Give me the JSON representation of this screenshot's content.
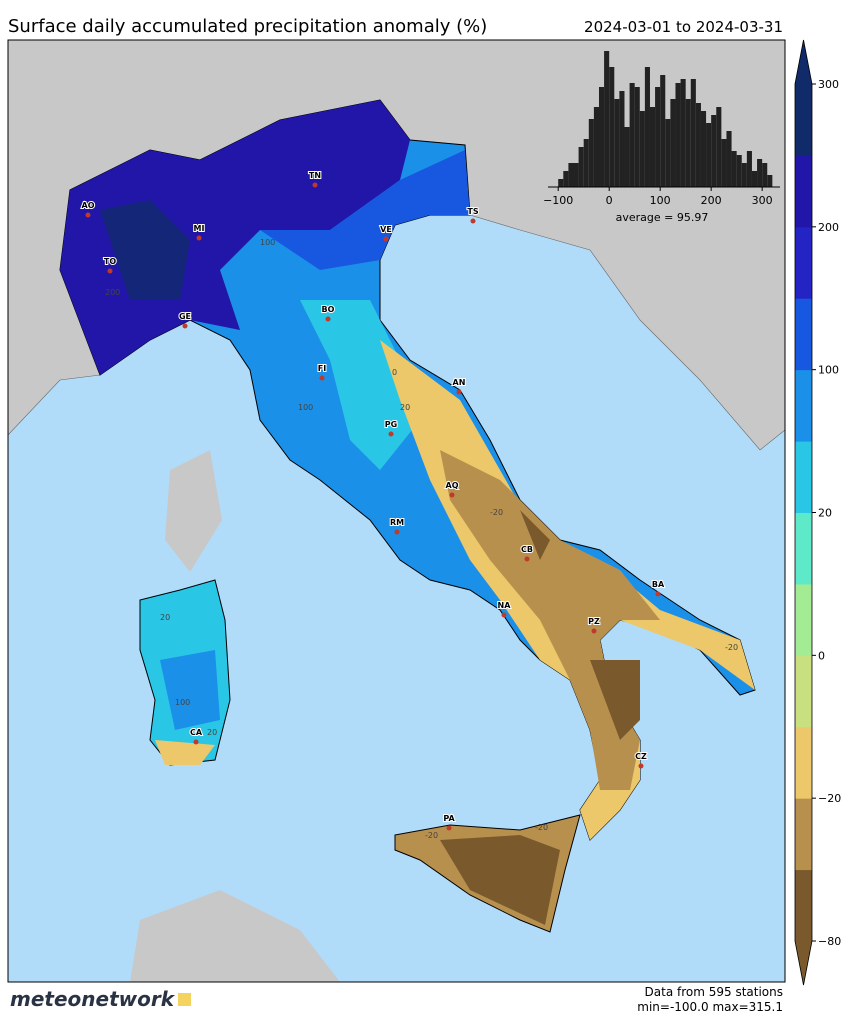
{
  "title": "Surface daily accumulated precipitation anomaly (%)",
  "date_range": "2024-03-01 to 2024-03-31",
  "cities": [
    "AO",
    "TO",
    "MI",
    "GE",
    "TN",
    "VE",
    "TS",
    "BO",
    "FI",
    "AN",
    "PG",
    "AQ",
    "RM",
    "CB",
    "NA",
    "BA",
    "PZ",
    "CZ",
    "PA",
    "CA"
  ],
  "contour_labels": [
    "100",
    "100",
    "200",
    "20",
    "20",
    "-20",
    "-20",
    "0",
    "-20",
    "-20",
    "20",
    "100"
  ],
  "histogram": {
    "type": "histogram",
    "bins": [
      -100,
      -90,
      -80,
      -70,
      -60,
      -50,
      -40,
      -30,
      -20,
      -10,
      0,
      10,
      20,
      30,
      40,
      50,
      60,
      70,
      80,
      90,
      100,
      110,
      120,
      130,
      140,
      150,
      160,
      170,
      180,
      190,
      200,
      210,
      220,
      230,
      240,
      250,
      260,
      270,
      280,
      290,
      300,
      310,
      320
    ],
    "counts": [
      2,
      4,
      6,
      6,
      10,
      12,
      17,
      20,
      25,
      34,
      30,
      22,
      24,
      15,
      26,
      25,
      19,
      30,
      20,
      25,
      28,
      17,
      22,
      26,
      27,
      22,
      27,
      21,
      19,
      16,
      18,
      20,
      12,
      14,
      9,
      8,
      6,
      9,
      4,
      7,
      6,
      3
    ],
    "color": "#222222",
    "xlim": [
      -120,
      335
    ],
    "xticks": [
      {
        "value": -100,
        "label": "−100"
      },
      0,
      100,
      200,
      300
    ],
    "annotation": "average = 95.97"
  },
  "colorbar": {
    "colors": [
      "#7a5a2c",
      "#b8904e",
      "#ecc86a",
      "#c8e080",
      "#a4ec94",
      "#5eeac8",
      "#2ac6e6",
      "#1a90e8",
      "#1858e0",
      "#2424c4",
      "#2216a8",
      "#102a6a"
    ],
    "ticks": [
      {
        "value": -80,
        "label": "−80"
      },
      {
        "value": -20,
        "label": "−20"
      },
      0,
      20,
      100,
      200,
      300
    ]
  },
  "footer": {
    "stations": "Data from 595 stations",
    "range": "min=-100.0 max=315.1",
    "logo": "meteonetwork"
  }
}
